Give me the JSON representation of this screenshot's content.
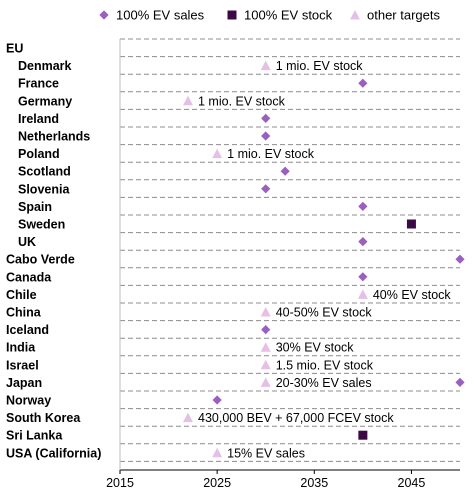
{
  "chart_data": {
    "type": "scatter",
    "orientation": "horizontal-categories",
    "xlim": [
      2015,
      2050
    ],
    "xticks": [
      "2015",
      "2025",
      "2035",
      "2045"
    ],
    "grid": "horizontal dashed",
    "legend_position": "top",
    "legend": [
      {
        "name": "100% EV sales",
        "marker": "diamond",
        "color": "#9a5fc1"
      },
      {
        "name": "100% EV stock",
        "marker": "square",
        "color": "#3b0a45"
      },
      {
        "name": "other targets",
        "marker": "triangle",
        "color": "#e6bfe8"
      }
    ],
    "categories": [
      {
        "label": "EU",
        "indent": false
      },
      {
        "label": "Denmark",
        "indent": true
      },
      {
        "label": "France",
        "indent": true
      },
      {
        "label": "Germany",
        "indent": true
      },
      {
        "label": "Ireland",
        "indent": true
      },
      {
        "label": "Netherlands",
        "indent": true
      },
      {
        "label": "Poland",
        "indent": true
      },
      {
        "label": "Scotland",
        "indent": true
      },
      {
        "label": "Slovenia",
        "indent": true
      },
      {
        "label": "Spain",
        "indent": true
      },
      {
        "label": "Sweden",
        "indent": true
      },
      {
        "label": "UK",
        "indent": true
      },
      {
        "label": "Cabo Verde",
        "indent": false
      },
      {
        "label": "Canada",
        "indent": false
      },
      {
        "label": "Chile",
        "indent": false
      },
      {
        "label": "China",
        "indent": false
      },
      {
        "label": "Iceland",
        "indent": false
      },
      {
        "label": "India",
        "indent": false
      },
      {
        "label": "Israel",
        "indent": false
      },
      {
        "label": "Japan",
        "indent": false
      },
      {
        "label": "Norway",
        "indent": false
      },
      {
        "label": "South Korea",
        "indent": false
      },
      {
        "label": "Sri Lanka",
        "indent": false
      },
      {
        "label": "USA (California)",
        "indent": false
      }
    ],
    "points": [
      {
        "category": "Denmark",
        "type": "other",
        "x": 2030,
        "label": "1 mio. EV stock"
      },
      {
        "category": "France",
        "type": "sales",
        "x": 2040
      },
      {
        "category": "Germany",
        "type": "other",
        "x": 2022,
        "label": "1 mio. EV stock"
      },
      {
        "category": "Ireland",
        "type": "sales",
        "x": 2030
      },
      {
        "category": "Netherlands",
        "type": "sales",
        "x": 2030
      },
      {
        "category": "Poland",
        "type": "other",
        "x": 2025,
        "label": "1 mio. EV stock"
      },
      {
        "category": "Scotland",
        "type": "sales",
        "x": 2032
      },
      {
        "category": "Slovenia",
        "type": "sales",
        "x": 2030
      },
      {
        "category": "Spain",
        "type": "sales",
        "x": 2040
      },
      {
        "category": "Sweden",
        "type": "stock",
        "x": 2045
      },
      {
        "category": "UK",
        "type": "sales",
        "x": 2040
      },
      {
        "category": "Cabo Verde",
        "type": "sales",
        "x": 2050
      },
      {
        "category": "Canada",
        "type": "sales",
        "x": 2040
      },
      {
        "category": "Chile",
        "type": "other",
        "x": 2040,
        "label": "40% EV stock"
      },
      {
        "category": "China",
        "type": "other",
        "x": 2030,
        "label": "40-50% EV stock"
      },
      {
        "category": "Iceland",
        "type": "sales",
        "x": 2030
      },
      {
        "category": "India",
        "type": "other",
        "x": 2030,
        "label": "30% EV stock"
      },
      {
        "category": "Israel",
        "type": "other",
        "x": 2030,
        "label": "1.5 mio. EV stock"
      },
      {
        "category": "Japan",
        "type": "other",
        "x": 2030,
        "label": "20-30% EV sales"
      },
      {
        "category": "Japan",
        "type": "sales",
        "x": 2050
      },
      {
        "category": "Norway",
        "type": "sales",
        "x": 2025
      },
      {
        "category": "South Korea",
        "type": "other",
        "x": 2022,
        "label": "430,000 BEV + 67,000 FCEV stock"
      },
      {
        "category": "Sri Lanka",
        "type": "stock",
        "x": 2040
      },
      {
        "category": "USA (California)",
        "type": "other",
        "x": 2025,
        "label": "15% EV sales"
      }
    ]
  }
}
